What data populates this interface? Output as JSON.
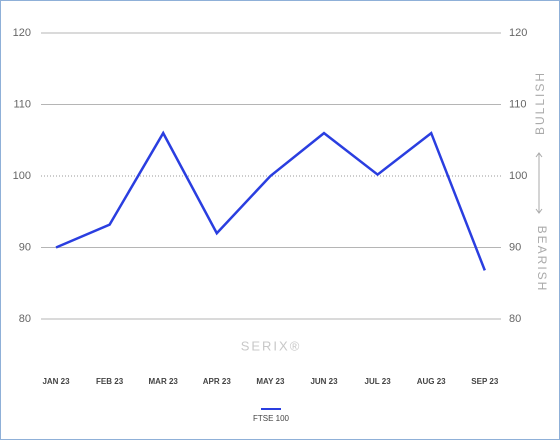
{
  "chart_data": {
    "type": "line",
    "categories": [
      "JAN 23",
      "FEB 23",
      "MAR 23",
      "APR 23",
      "MAY 23",
      "JUN 23",
      "JUL 23",
      "AUG 23",
      "SEP 23"
    ],
    "series": [
      {
        "name": "FTSE 100",
        "color": "#2a3ee0",
        "values": [
          90,
          93.2,
          106,
          92,
          100,
          106,
          100.2,
          106,
          86.8
        ]
      }
    ],
    "ylim": [
      80,
      120
    ],
    "yticks": [
      80,
      90,
      100,
      110,
      120
    ],
    "baseline": 100,
    "grid": true,
    "annotations": {
      "upper": "BULLISH",
      "lower": "BEARISH",
      "watermark": "SERIX®"
    }
  }
}
